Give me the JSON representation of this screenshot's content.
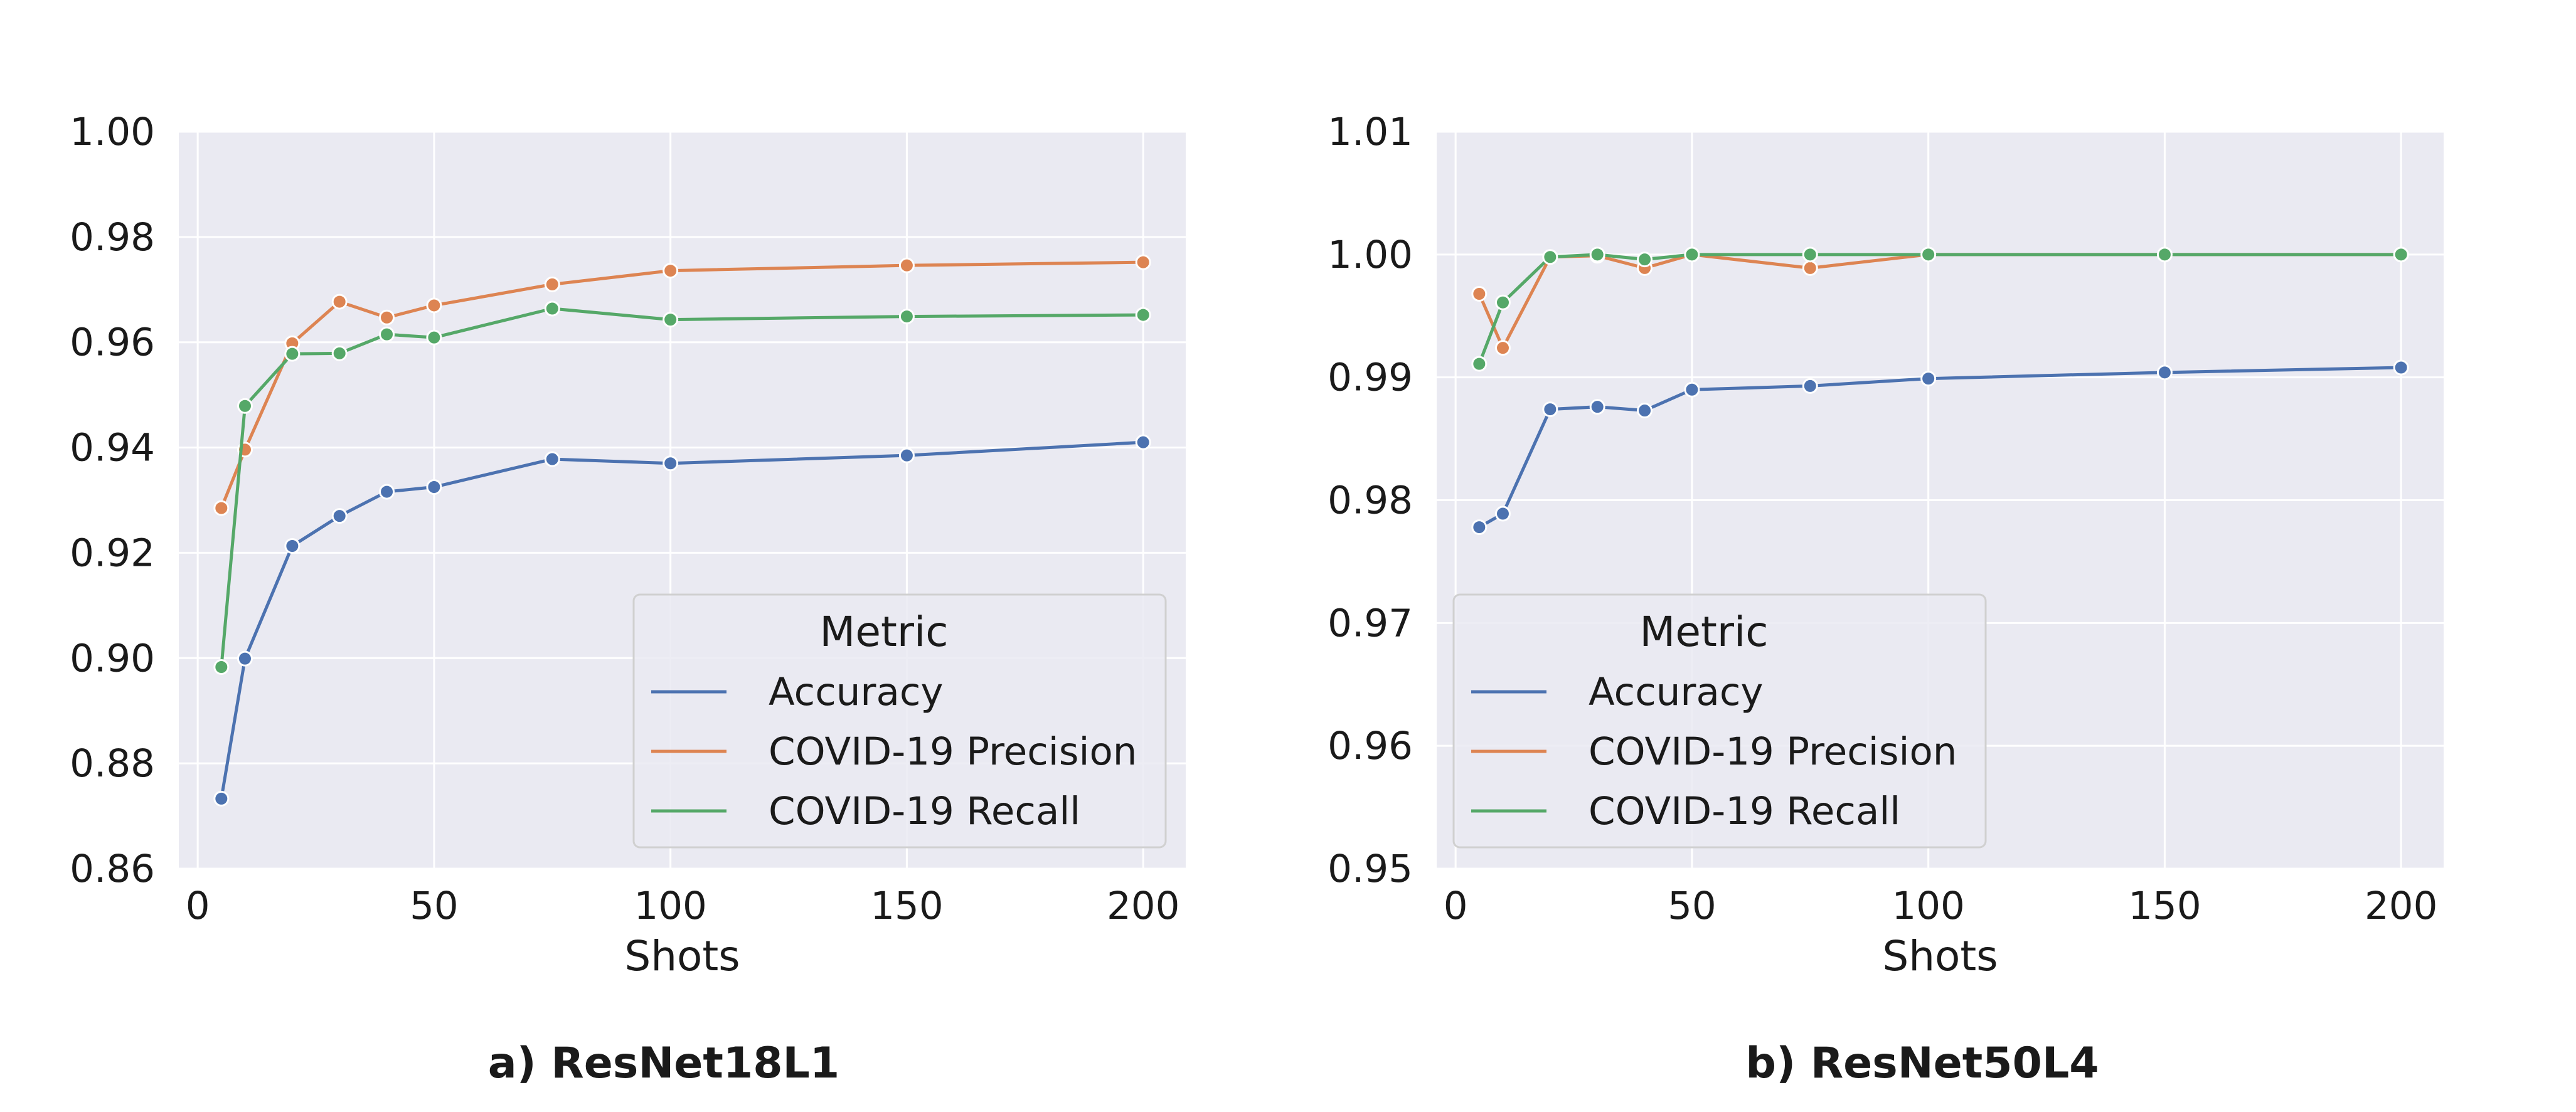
{
  "colors": {
    "plot_bg": "#eaeaf2",
    "grid": "#ffffff",
    "series": [
      "#4c72b0",
      "#dd8452",
      "#55a868"
    ]
  },
  "chart_data": [
    {
      "type": "line",
      "caption": "a) ResNet18L1",
      "xlabel": "Shots",
      "ylabel": "",
      "x": [
        5,
        10,
        20,
        30,
        40,
        50,
        75,
        100,
        150,
        200
      ],
      "xlim": [
        -4,
        209
      ],
      "ylim": [
        0.86,
        1.0
      ],
      "xticks": [
        0,
        50,
        100,
        150,
        200
      ],
      "yticks": [
        0.86,
        0.88,
        0.9,
        0.92,
        0.94,
        0.96,
        0.98,
        1.0
      ],
      "ytick_labels": [
        "0.86",
        "0.88",
        "0.90",
        "0.92",
        "0.94",
        "0.96",
        "0.98",
        "1.00"
      ],
      "grid": true,
      "legend": {
        "title": "Metric",
        "placement": "lower-right"
      },
      "series": [
        {
          "name": "Accuracy",
          "values": [
            0.8733,
            0.8999,
            0.9213,
            0.927,
            0.9316,
            0.9325,
            0.9378,
            0.937,
            0.9385,
            0.941
          ]
        },
        {
          "name": "COVID-19 Precision",
          "values": [
            0.9285,
            0.9396,
            0.9598,
            0.9677,
            0.9647,
            0.967,
            0.971,
            0.9736,
            0.9746,
            0.9752
          ]
        },
        {
          "name": "COVID-19 Recall",
          "values": [
            0.8983,
            0.9479,
            0.9578,
            0.9579,
            0.9615,
            0.9609,
            0.9664,
            0.9643,
            0.9649,
            0.9652
          ]
        }
      ]
    },
    {
      "type": "line",
      "caption": "b) ResNet50L4",
      "xlabel": "Shots",
      "ylabel": "",
      "x": [
        5,
        10,
        20,
        30,
        40,
        50,
        75,
        100,
        150,
        200
      ],
      "xlim": [
        -4,
        209
      ],
      "ylim": [
        0.95,
        1.01
      ],
      "xticks": [
        0,
        50,
        100,
        150,
        200
      ],
      "yticks": [
        0.95,
        0.96,
        0.97,
        0.98,
        0.99,
        1.0,
        1.01
      ],
      "ytick_labels": [
        "0.95",
        "0.96",
        "0.97",
        "0.98",
        "0.99",
        "1.00",
        "1.01"
      ],
      "grid": true,
      "legend": {
        "title": "Metric",
        "placement": "lower-left"
      },
      "series": [
        {
          "name": "Accuracy",
          "values": [
            0.9778,
            0.9789,
            0.9874,
            0.9876,
            0.9873,
            0.989,
            0.9893,
            0.9899,
            0.9904,
            0.9908
          ]
        },
        {
          "name": "COVID-19 Precision",
          "values": [
            0.9968,
            0.9924,
            0.9998,
            0.9999,
            0.9989,
            1.0,
            0.9989,
            1.0,
            1.0,
            1.0
          ]
        },
        {
          "name": "COVID-19 Recall",
          "values": [
            0.9911,
            0.9961,
            0.9998,
            1.0,
            0.9996,
            1.0,
            1.0,
            1.0,
            1.0,
            1.0
          ]
        }
      ]
    }
  ]
}
